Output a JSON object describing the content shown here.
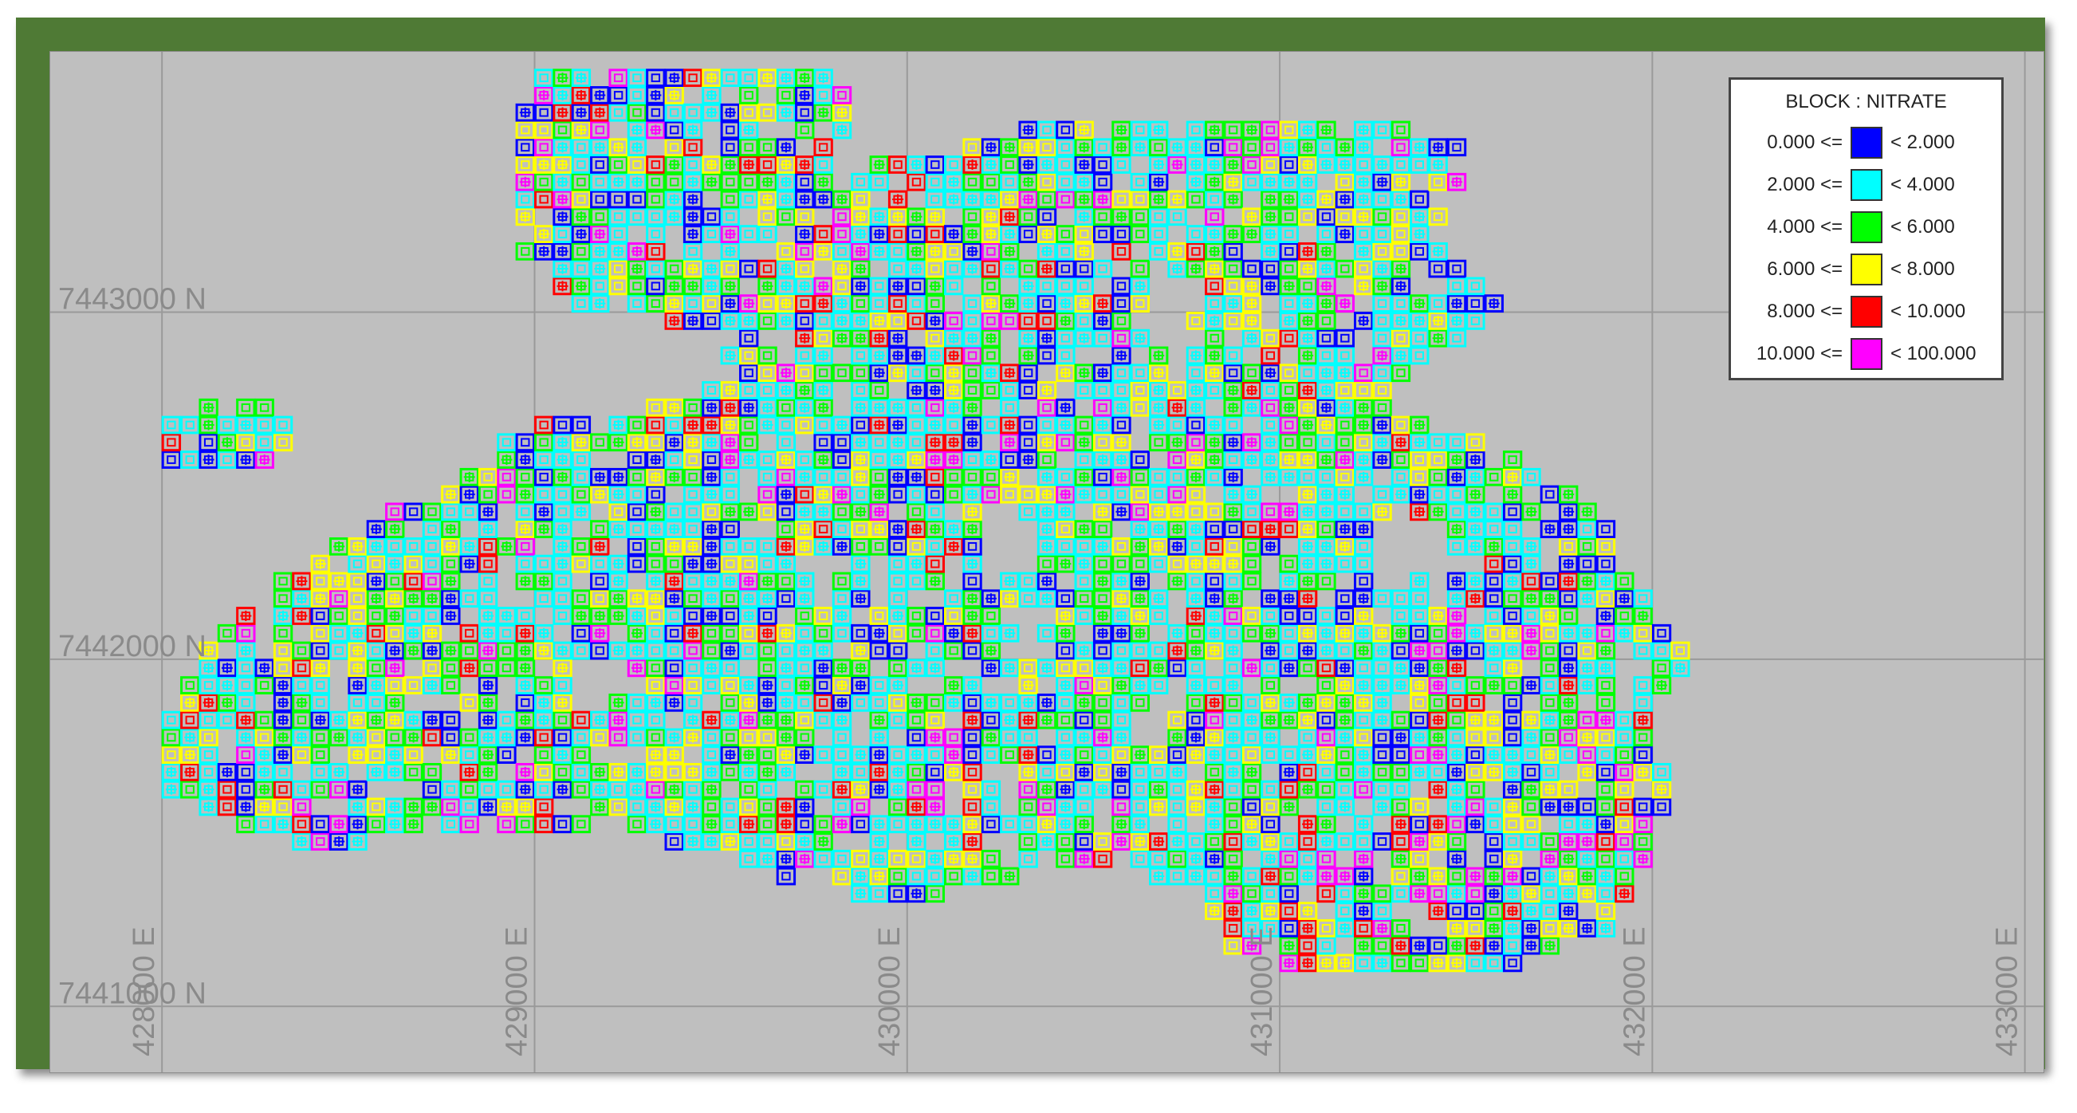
{
  "map": {
    "x_range": [
      427700,
      433050
    ],
    "y_range": [
      7440810,
      7443750
    ],
    "grid_x": [
      428000,
      429000,
      430000,
      431000,
      432000,
      433000
    ],
    "grid_y": [
      7441000,
      7442000,
      7443000
    ],
    "x_labels": [
      "428000 E",
      "429000 E",
      "430000 E",
      "431000 E",
      "432000 E",
      "433000 E"
    ],
    "y_labels": [
      "7441000 N",
      "7442000 N",
      "7443000 N"
    ],
    "grid_color": "#9a9a9a",
    "label_color": "#8a8a8a",
    "background": "#bfbfbf"
  },
  "legend": {
    "title": "BLOCK : NITRATE",
    "op_lo": "<=",
    "op_hi": "<",
    "classes": [
      {
        "lo": "0.000",
        "hi": "2.000",
        "color": "#0000ff"
      },
      {
        "lo": "2.000",
        "hi": "4.000",
        "color": "#00ffff"
      },
      {
        "lo": "4.000",
        "hi": "6.000",
        "color": "#00ff00"
      },
      {
        "lo": "6.000",
        "hi": "8.000",
        "color": "#ffff00"
      },
      {
        "lo": "8.000",
        "hi": "10.000",
        "color": "#ff0000"
      },
      {
        "lo": "10.000",
        "hi": "100.000",
        "color": "#ff00ff"
      }
    ]
  },
  "block_model": {
    "block_size": 50,
    "seed": 7,
    "footprint": [
      [
        428720,
        7441520
      ],
      [
        428900,
        7441480
      ],
      [
        429150,
        7441520
      ],
      [
        429450,
        7441460
      ],
      [
        429700,
        7441350
      ],
      [
        429900,
        7441300
      ],
      [
        430200,
        7441340
      ],
      [
        430450,
        7441430
      ],
      [
        430800,
        7441320
      ],
      [
        430850,
        7441150
      ],
      [
        431200,
        7441100
      ],
      [
        431600,
        7441100
      ],
      [
        431900,
        7441230
      ],
      [
        432000,
        7441450
      ],
      [
        432050,
        7441600
      ],
      [
        432000,
        7441850
      ],
      [
        432100,
        7442000
      ],
      [
        431950,
        7442250
      ],
      [
        431850,
        7442450
      ],
      [
        431500,
        7442650
      ],
      [
        431250,
        7442750
      ],
      [
        431600,
        7443000
      ],
      [
        431450,
        7443200
      ],
      [
        431500,
        7443500
      ],
      [
        431250,
        7443550
      ],
      [
        430800,
        7443570
      ],
      [
        430300,
        7443530
      ],
      [
        430100,
        7443450
      ],
      [
        429800,
        7443420
      ],
      [
        429850,
        7443600
      ],
      [
        429800,
        7443680
      ],
      [
        429400,
        7443700
      ],
      [
        429000,
        7443680
      ],
      [
        428950,
        7443500
      ],
      [
        428970,
        7443150
      ],
      [
        429150,
        7443000
      ],
      [
        429550,
        7442950
      ],
      [
        429450,
        7442750
      ],
      [
        429000,
        7442680
      ],
      [
        428750,
        7442500
      ],
      [
        428500,
        7442350
      ],
      [
        428200,
        7442150
      ],
      [
        428050,
        7441900
      ],
      [
        427950,
        7441650
      ],
      [
        428200,
        7441520
      ],
      [
        428450,
        7441450
      ]
    ],
    "islet": [
      [
        428000,
        7442700
      ],
      [
        428200,
        7442750
      ],
      [
        428320,
        7442720
      ],
      [
        428350,
        7442590
      ],
      [
        428200,
        7442520
      ],
      [
        428000,
        7442560
      ]
    ],
    "holes": [
      [
        [
          430200,
          7442200
        ],
        [
          430380,
          7442280
        ],
        [
          430360,
          7442420
        ],
        [
          430200,
          7442430
        ]
      ],
      [
        [
          431250,
          7442200
        ],
        [
          431450,
          7442260
        ],
        [
          431420,
          7442400
        ],
        [
          431260,
          7442380
        ]
      ],
      [
        [
          429100,
          7441850
        ],
        [
          429300,
          7441900
        ],
        [
          429250,
          7442020
        ],
        [
          429080,
          7442000
        ]
      ],
      [
        [
          430650,
          7442950
        ],
        [
          430800,
          7442980
        ],
        [
          430780,
          7443100
        ],
        [
          430640,
          7443070
        ]
      ]
    ]
  }
}
